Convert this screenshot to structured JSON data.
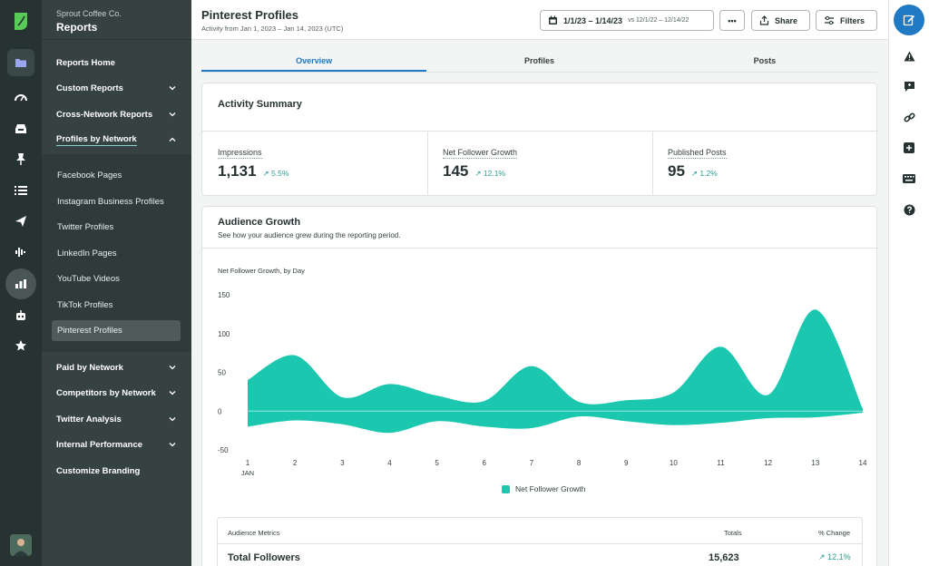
{
  "app": {
    "org": "Sprout Coffee Co.",
    "section": "Reports"
  },
  "rail": {
    "icons": [
      "sprout-logo-icon",
      "folder-icon",
      "gauge-icon",
      "inbox-icon",
      "pin-icon",
      "list-icon",
      "send-icon",
      "audio-wave-icon",
      "bar-chart-icon",
      "bot-icon",
      "star-icon"
    ],
    "active": "bar-chart-icon"
  },
  "sidebar": {
    "items": [
      {
        "label": "Reports Home"
      },
      {
        "label": "Custom Reports"
      },
      {
        "label": "Cross-Network Reports"
      },
      {
        "label": "Profiles by Network"
      },
      {
        "label": "Paid by Network"
      },
      {
        "label": "Competitors by Network"
      },
      {
        "label": "Twitter Analysis"
      },
      {
        "label": "Internal Performance"
      },
      {
        "label": "Customize Branding"
      }
    ],
    "sub_items": [
      {
        "label": "Facebook Pages"
      },
      {
        "label": "Instagram Business Profiles"
      },
      {
        "label": "Twitter Profiles"
      },
      {
        "label": "LinkedIn Pages"
      },
      {
        "label": "YouTube Videos"
      },
      {
        "label": "TikTok Profiles"
      },
      {
        "label": "Pinterest Profiles"
      }
    ],
    "active_sub": "Pinterest Profiles"
  },
  "header": {
    "title": "Pinterest Profiles",
    "subtitle": "Activity from Jan 1, 2023 – Jan 14, 2023 (UTC)",
    "date_range": "1/1/23 – 1/14/23",
    "compare_range": "vs 12/1/22 – 12/14/22",
    "more_label": "•••",
    "share_label": "Share",
    "filters_label": "Filters"
  },
  "tabs": [
    {
      "label": "Overview",
      "active": true
    },
    {
      "label": "Profiles",
      "active": false
    },
    {
      "label": "Posts",
      "active": false
    }
  ],
  "activity_summary": {
    "title": "Activity Summary",
    "metrics": [
      {
        "label": "Impressions",
        "value": "1,131",
        "delta": "5.5%"
      },
      {
        "label": "Net Follower Growth",
        "value": "145",
        "delta": "12.1%"
      },
      {
        "label": "Published Posts",
        "value": "95",
        "delta": "1.2%"
      }
    ]
  },
  "audience_growth": {
    "title": "Audience Growth",
    "subtitle": "See how your audience grew during the reporting period.",
    "chart_label": "Net Follower Growth, by Day",
    "legend": "Net Follower Growth"
  },
  "chart_data": {
    "type": "area",
    "title": "Net Follower Growth, by Day",
    "x": [
      1,
      2,
      3,
      4,
      5,
      6,
      7,
      8,
      9,
      10,
      11,
      12,
      13,
      14
    ],
    "x_tick_labels": [
      "1",
      "2",
      "3",
      "4",
      "5",
      "6",
      "7",
      "8",
      "9",
      "10",
      "11",
      "12",
      "13",
      "14"
    ],
    "x_sublabel": "JAN",
    "y_ticks": [
      150,
      100,
      50,
      0,
      -50
    ],
    "ylim": [
      -50,
      150
    ],
    "series": [
      {
        "name": "Net Follower Growth",
        "color": "#1cc7b0",
        "upper": [
          40,
          72,
          18,
          35,
          20,
          13,
          58,
          12,
          14,
          24,
          83,
          21,
          131,
          3
        ],
        "lower": [
          -20,
          -12,
          -17,
          -28,
          -13,
          -20,
          -22,
          -7,
          -13,
          -18,
          -15,
          -9,
          -8,
          -2
        ]
      }
    ],
    "grid": false,
    "legend_position": "bottom-center"
  },
  "audience_metrics": {
    "header": "Audience Metrics",
    "totals_header": "Totals",
    "change_header": "% Change",
    "rows": [
      {
        "label": "Total Followers",
        "total": "15,623",
        "change": "12.1%"
      }
    ]
  },
  "right_rail": {
    "icons": [
      "compose-icon",
      "alert-icon",
      "feedback-icon",
      "link-icon",
      "add-icon",
      "keyboard-icon",
      "help-icon"
    ]
  }
}
